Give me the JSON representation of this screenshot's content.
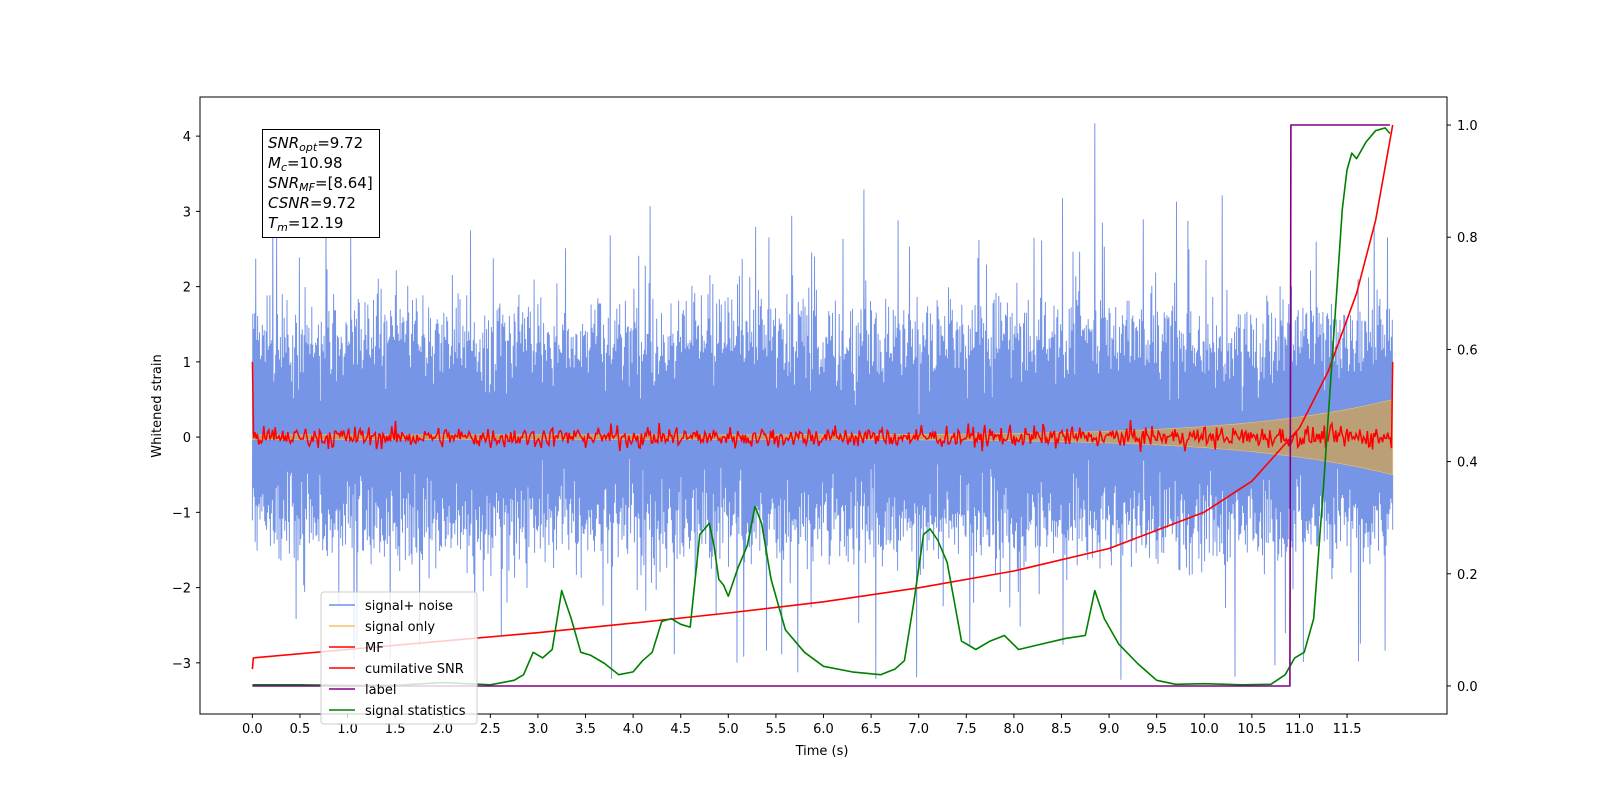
{
  "chart_data": {
    "type": "line",
    "xlabel": "Time (s)",
    "ylabel": "Whitened strain",
    "xlim": [
      -0.55,
      12.55
    ],
    "ylim_left": [
      -3.68,
      4.52
    ],
    "ylim_right": [
      -0.05,
      1.05
    ],
    "xticks": [
      0.0,
      0.5,
      1.0,
      1.5,
      2.0,
      2.5,
      3.0,
      3.5,
      4.0,
      4.5,
      5.0,
      5.5,
      6.0,
      6.5,
      7.0,
      7.5,
      8.0,
      8.5,
      9.0,
      9.5,
      10.0,
      10.5,
      11.0,
      11.5
    ],
    "xtick_labels": [
      "0.0",
      "0.5",
      "1.0",
      "1.5",
      "2.0",
      "2.5",
      "3.0",
      "3.5",
      "4.0",
      "4.5",
      "5.0",
      "5.5",
      "6.0",
      "6.5",
      "7.0",
      "7.5",
      "8.0",
      "8.5",
      "9.0",
      "9.5",
      "10.0",
      "10.5",
      "11.0",
      "11.5"
    ],
    "yticks_left": [
      -3,
      -2,
      -1,
      0,
      1,
      2,
      3,
      4
    ],
    "ytick_labels_left": [
      "−3",
      "−2",
      "−1",
      "0",
      "1",
      "2",
      "3",
      "4"
    ],
    "yticks_right": [
      0.0,
      0.2,
      0.4,
      0.6,
      0.8,
      1.0
    ],
    "ytick_labels_right": [
      "0.0",
      "0.2",
      "0.4",
      "0.6",
      "0.8",
      "1.0"
    ],
    "legend_position": "lower-left",
    "series": [
      {
        "name": "signal+ noise",
        "color": "#6f8fe6",
        "axis": "left",
        "kind": "noise-band",
        "x_range": [
          0.0,
          11.98
        ],
        "typical_range": [
          -1.5,
          1.7
        ],
        "extremes": [
          -2.98,
          4.17
        ]
      },
      {
        "name": "signal only",
        "color": "#f5c06a",
        "axis": "left",
        "kind": "chirp-envelope",
        "x_range": [
          0.0,
          11.98
        ],
        "amplitude_start": 0.03,
        "amplitude_end": 0.5
      },
      {
        "name": "MF",
        "color": "#ff0000",
        "axis": "left",
        "kind": "noisy-line",
        "x_range": [
          0.0,
          11.98
        ],
        "start_value": 1.0,
        "typical_range": [
          -0.2,
          0.2
        ],
        "end_value": 1.0
      },
      {
        "name": "cumilative SNR",
        "color": "#ff0000",
        "axis": "right",
        "x": [
          0.0,
          0.01,
          1.0,
          2.0,
          3.0,
          4.0,
          5.0,
          6.0,
          7.0,
          8.0,
          9.0,
          10.0,
          10.5,
          11.0,
          11.3,
          11.6,
          11.8,
          11.98
        ],
        "y": [
          0.03,
          0.05,
          0.065,
          0.08,
          0.095,
          0.112,
          0.13,
          0.15,
          0.175,
          0.205,
          0.245,
          0.31,
          0.365,
          0.46,
          0.56,
          0.7,
          0.83,
          1.0
        ]
      },
      {
        "name": "label",
        "color": "#800080",
        "axis": "right",
        "x": [
          0.0,
          10.86,
          10.87,
          10.9,
          10.91,
          11.95
        ],
        "y": [
          0.0,
          0.0,
          0.0,
          0.0,
          1.0,
          1.0
        ]
      },
      {
        "name": "signal statistics",
        "color": "#008000",
        "axis": "right",
        "x": [
          0.0,
          0.5,
          1.0,
          1.5,
          2.0,
          2.5,
          2.75,
          2.85,
          2.95,
          3.05,
          3.15,
          3.25,
          3.35,
          3.45,
          3.55,
          3.7,
          3.85,
          4.0,
          4.1,
          4.2,
          4.3,
          4.4,
          4.5,
          4.6,
          4.7,
          4.8,
          4.85,
          4.9,
          4.95,
          5.0,
          5.1,
          5.2,
          5.28,
          5.35,
          5.45,
          5.6,
          5.8,
          6.0,
          6.3,
          6.6,
          6.75,
          6.85,
          6.95,
          7.05,
          7.12,
          7.2,
          7.3,
          7.45,
          7.6,
          7.75,
          7.9,
          8.05,
          8.3,
          8.55,
          8.75,
          8.85,
          8.95,
          9.1,
          9.3,
          9.5,
          9.7,
          10.0,
          10.4,
          10.7,
          10.85,
          10.95,
          11.05,
          11.15,
          11.25,
          11.35,
          11.45,
          11.5,
          11.55,
          11.6,
          11.7,
          11.8,
          11.9,
          11.95
        ],
        "y": [
          0.002,
          0.002,
          0.001,
          0.001,
          0.006,
          0.002,
          0.01,
          0.02,
          0.06,
          0.05,
          0.065,
          0.17,
          0.12,
          0.06,
          0.055,
          0.04,
          0.02,
          0.025,
          0.045,
          0.06,
          0.115,
          0.12,
          0.11,
          0.105,
          0.27,
          0.29,
          0.25,
          0.19,
          0.18,
          0.16,
          0.21,
          0.25,
          0.32,
          0.29,
          0.19,
          0.1,
          0.06,
          0.035,
          0.025,
          0.02,
          0.03,
          0.045,
          0.15,
          0.27,
          0.28,
          0.26,
          0.22,
          0.08,
          0.065,
          0.08,
          0.09,
          0.065,
          0.075,
          0.085,
          0.09,
          0.17,
          0.12,
          0.075,
          0.04,
          0.01,
          0.003,
          0.004,
          0.002,
          0.003,
          0.02,
          0.05,
          0.06,
          0.12,
          0.35,
          0.6,
          0.85,
          0.92,
          0.95,
          0.94,
          0.97,
          0.99,
          0.995,
          0.985
        ]
      }
    ]
  },
  "legend": [
    {
      "label": "signal+ noise",
      "color": "#6f8fe6"
    },
    {
      "label": "signal only",
      "color": "#f5c06a"
    },
    {
      "label": "MF",
      "color": "#ff0000"
    },
    {
      "label": "cumilative SNR",
      "color": "#ff0000"
    },
    {
      "label": "label",
      "color": "#800080"
    },
    {
      "label": "signal statistics",
      "color": "#008000"
    }
  ],
  "info_box": {
    "snr_opt": {
      "name": "SNR",
      "sub": "opt",
      "value": "=9.72"
    },
    "mc": {
      "name": "M",
      "sub": "c",
      "value": "=10.98"
    },
    "snr_mf": {
      "name": "SNR",
      "sub": "MF",
      "value": "=[8.64]"
    },
    "csnr": {
      "name": "CSNR",
      "sub": "",
      "value": "=9.72"
    },
    "tm": {
      "name": "T",
      "sub": "m",
      "value": "=12.19"
    }
  }
}
